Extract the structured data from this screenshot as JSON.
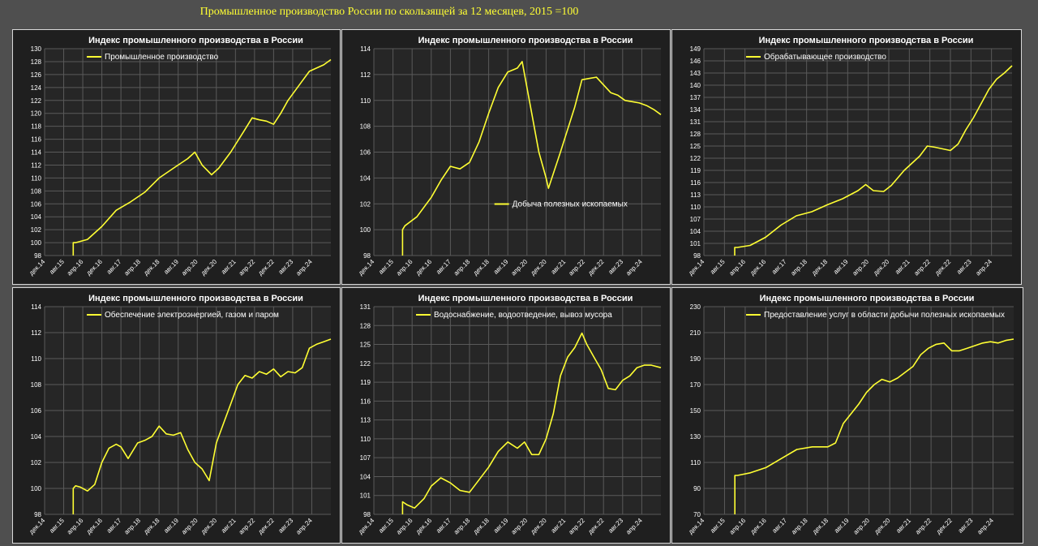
{
  "page": {
    "title": "Промышленное производство России по скользящей за 12 месяцев, 2015 =100"
  },
  "style": {
    "background": "#4f4f4f",
    "panel_background": "#1f1f1f",
    "panel_border": "#d9d9d9",
    "plot_background": "#262626",
    "grid": "#5a5a5a",
    "line": "#ffff33",
    "title_text": "#ffffff",
    "axis_text": "#ffffff",
    "legend_text": "#ffffff"
  },
  "chart_data": [
    {
      "type": "line",
      "title": "Индекс промышленного производства в России",
      "series_name": "Промышленное производство",
      "legend_position": "top-left",
      "ylim": [
        98,
        130
      ],
      "yticks": [
        98,
        100,
        102,
        104,
        106,
        108,
        110,
        112,
        114,
        116,
        118,
        120,
        122,
        124,
        126,
        128,
        130
      ],
      "xlim": [
        "2014-12",
        "2024-12"
      ],
      "xtick_labels": [
        "дек.14",
        "авг.15",
        "апр.16",
        "дек.16",
        "авг.17",
        "апр.18",
        "дек.18",
        "авг.19",
        "апр.20",
        "дек.20",
        "авг.21",
        "апр.22",
        "дек.22",
        "авг.23",
        "апр.24"
      ],
      "grid": true,
      "x": [
        "2015-12",
        "2016-01",
        "2016-06",
        "2016-12",
        "2017-06",
        "2017-12",
        "2018-06",
        "2018-12",
        "2019-06",
        "2019-12",
        "2020-03",
        "2020-06",
        "2020-10",
        "2021-01",
        "2021-06",
        "2021-12",
        "2022-03",
        "2022-06",
        "2022-09",
        "2022-12",
        "2023-03",
        "2023-06",
        "2023-09",
        "2023-12",
        "2024-03",
        "2024-06",
        "2024-09",
        "2024-12"
      ],
      "y": [
        100.0,
        100.0,
        100.5,
        102.5,
        105.0,
        106.3,
        107.8,
        110.0,
        111.5,
        113.0,
        114.0,
        112.0,
        110.5,
        111.5,
        114.0,
        117.5,
        119.3,
        119.0,
        118.8,
        118.3,
        120.0,
        122.0,
        123.5,
        125.0,
        126.5,
        127.0,
        127.5,
        128.3
      ]
    },
    {
      "type": "line",
      "title": "Индекс промышленного производства в России",
      "series_name": "Добыча полезных ископаемых",
      "legend_position": "bottom-center",
      "ylim": [
        98,
        114
      ],
      "yticks": [
        98,
        100,
        102,
        104,
        106,
        108,
        110,
        112,
        114
      ],
      "xlim": [
        "2014-12",
        "2024-12"
      ],
      "xtick_labels": [
        "дек.14",
        "авг.15",
        "апр.16",
        "дек.16",
        "авг.17",
        "апр.18",
        "дек.18",
        "авг.19",
        "апр.20",
        "дек.20",
        "авг.21",
        "апр.22",
        "дек.22",
        "авг.23",
        "апр.24"
      ],
      "grid": true,
      "x": [
        "2015-12",
        "2016-01",
        "2016-06",
        "2016-12",
        "2017-04",
        "2017-08",
        "2017-12",
        "2018-04",
        "2018-08",
        "2018-12",
        "2019-04",
        "2019-08",
        "2019-12",
        "2020-02",
        "2020-06",
        "2020-09",
        "2020-12",
        "2021-01",
        "2021-06",
        "2021-12",
        "2022-03",
        "2022-06",
        "2022-09",
        "2022-12",
        "2023-03",
        "2023-06",
        "2023-09",
        "2023-12",
        "2024-03",
        "2024-06",
        "2024-09",
        "2024-12"
      ],
      "y": [
        100.0,
        100.3,
        101.0,
        102.5,
        103.8,
        104.9,
        104.7,
        105.2,
        106.8,
        109.0,
        111.0,
        112.2,
        112.5,
        113.0,
        109.0,
        106.0,
        104.0,
        103.2,
        106.0,
        109.5,
        111.6,
        111.7,
        111.8,
        111.2,
        110.6,
        110.4,
        110.0,
        109.9,
        109.8,
        109.6,
        109.3,
        108.9
      ]
    },
    {
      "type": "line",
      "title": "Индекс промышленного производства в России",
      "series_name": "Обрабатывающее производство",
      "legend_position": "top-left",
      "ylim": [
        98,
        149
      ],
      "yticks": [
        98,
        101,
        104,
        107,
        110,
        113,
        116,
        119,
        122,
        125,
        128,
        131,
        134,
        137,
        140,
        143,
        146,
        149
      ],
      "xlim": [
        "2014-12",
        "2024-12"
      ],
      "xtick_labels": [
        "дек.14",
        "авг.15",
        "апр.16",
        "дек.16",
        "авг.17",
        "апр.18",
        "дек.18",
        "авг.19",
        "апр.20",
        "дек.20",
        "авг.21",
        "апр.22",
        "дек.22",
        "авг.23",
        "апр.24"
      ],
      "grid": true,
      "x": [
        "2015-12",
        "2016-01",
        "2016-06",
        "2016-12",
        "2017-06",
        "2017-12",
        "2018-06",
        "2018-12",
        "2019-06",
        "2019-12",
        "2020-03",
        "2020-06",
        "2020-10",
        "2021-01",
        "2021-06",
        "2021-12",
        "2022-03",
        "2022-06",
        "2022-09",
        "2022-12",
        "2023-03",
        "2023-06",
        "2023-09",
        "2023-12",
        "2024-03",
        "2024-06",
        "2024-09",
        "2024-12"
      ],
      "y": [
        100.0,
        100.0,
        100.5,
        102.5,
        105.5,
        107.8,
        108.8,
        110.5,
        112.0,
        114.0,
        115.5,
        114.0,
        113.8,
        115.3,
        119.0,
        122.5,
        125.0,
        124.7,
        124.3,
        123.9,
        125.5,
        129.0,
        132.0,
        135.5,
        139.0,
        141.5,
        143.0,
        144.8
      ]
    },
    {
      "type": "line",
      "title": "Индекс промышленного производства в России",
      "series_name": "Обеспечение электроэнергией, газом и паром",
      "legend_position": "top-left",
      "ylim": [
        98,
        114
      ],
      "yticks": [
        98,
        100,
        102,
        104,
        106,
        108,
        110,
        112,
        114
      ],
      "xlim": [
        "2014-12",
        "2024-12"
      ],
      "xtick_labels": [
        "дек.14",
        "авг.15",
        "апр.16",
        "дек.16",
        "авг.17",
        "апр.18",
        "дек.18",
        "авг.19",
        "апр.20",
        "дек.20",
        "авг.21",
        "апр.22",
        "дек.22",
        "авг.23",
        "апр.24"
      ],
      "grid": true,
      "x": [
        "2015-12",
        "2016-01",
        "2016-03",
        "2016-06",
        "2016-09",
        "2016-12",
        "2017-03",
        "2017-06",
        "2017-08",
        "2017-11",
        "2018-03",
        "2018-06",
        "2018-09",
        "2018-12",
        "2019-03",
        "2019-06",
        "2019-09",
        "2019-12",
        "2020-03",
        "2020-06",
        "2020-09",
        "2020-12",
        "2021-03",
        "2021-06",
        "2021-09",
        "2021-12",
        "2022-03",
        "2022-06",
        "2022-09",
        "2022-12",
        "2023-03",
        "2023-06",
        "2023-09",
        "2023-12",
        "2024-03",
        "2024-06",
        "2024-09",
        "2024-12"
      ],
      "y": [
        100.0,
        100.2,
        100.1,
        99.8,
        100.3,
        102.0,
        103.1,
        103.4,
        103.2,
        102.3,
        103.5,
        103.7,
        104.0,
        104.8,
        104.2,
        104.1,
        104.3,
        103.0,
        102.0,
        101.5,
        100.6,
        103.5,
        105.0,
        106.5,
        108.0,
        108.7,
        108.5,
        109.0,
        108.8,
        109.2,
        108.6,
        109.0,
        108.9,
        109.3,
        110.8,
        111.1,
        111.3,
        111.5
      ]
    },
    {
      "type": "line",
      "title": "Индекс промышленного производства в России",
      "series_name": "Водоснабжение, водоотведение, вывоз мусора",
      "legend_position": "top-left",
      "ylim": [
        98,
        131
      ],
      "yticks": [
        98,
        101,
        104,
        107,
        110,
        113,
        116,
        119,
        122,
        125,
        128,
        131
      ],
      "xlim": [
        "2014-12",
        "2024-12"
      ],
      "xtick_labels": [
        "дек.14",
        "авг.15",
        "апр.16",
        "дек.16",
        "авг.17",
        "апр.18",
        "дек.18",
        "авг.19",
        "апр.20",
        "дек.20",
        "авг.21",
        "апр.22",
        "дек.22",
        "авг.23",
        "апр.24"
      ],
      "grid": true,
      "x": [
        "2015-12",
        "2016-02",
        "2016-05",
        "2016-09",
        "2016-12",
        "2017-04",
        "2017-08",
        "2017-12",
        "2018-04",
        "2018-08",
        "2018-12",
        "2019-04",
        "2019-08",
        "2019-12",
        "2020-03",
        "2020-06",
        "2020-09",
        "2020-12",
        "2021-03",
        "2021-06",
        "2021-09",
        "2021-12",
        "2022-03",
        "2022-05",
        "2022-08",
        "2022-11",
        "2023-02",
        "2023-05",
        "2023-08",
        "2023-11",
        "2024-02",
        "2024-05",
        "2024-08",
        "2024-12"
      ],
      "y": [
        100.0,
        99.5,
        99.0,
        100.5,
        102.5,
        103.8,
        103.0,
        101.8,
        101.5,
        103.5,
        105.5,
        108.0,
        109.5,
        108.5,
        109.5,
        107.5,
        107.5,
        110.0,
        114.0,
        120.0,
        123.0,
        124.5,
        126.8,
        125.0,
        123.0,
        121.0,
        118.0,
        117.8,
        119.3,
        120.0,
        121.3,
        121.7,
        121.7,
        121.3
      ]
    },
    {
      "type": "line",
      "title": "Индекс промышленного производства в России",
      "series_name": "Предоставление услуг в области добычи полезных ископаемых",
      "legend_position": "top-left",
      "ylim": [
        70,
        230
      ],
      "yticks": [
        70,
        90,
        110,
        130,
        150,
        170,
        190,
        210,
        230
      ],
      "xlim": [
        "2014-12",
        "2024-12"
      ],
      "xtick_labels": [
        "дек.14",
        "авг.15",
        "апр.16",
        "дек.16",
        "авг.17",
        "апр.18",
        "дек.18",
        "авг.19",
        "апр.20",
        "дек.20",
        "авг.21",
        "апр.22",
        "дек.22",
        "авг.23",
        "апр.24"
      ],
      "grid": true,
      "x": [
        "2015-12",
        "2016-01",
        "2016-06",
        "2016-12",
        "2017-06",
        "2017-12",
        "2018-06",
        "2018-12",
        "2019-03",
        "2019-06",
        "2019-12",
        "2020-03",
        "2020-06",
        "2020-09",
        "2020-12",
        "2021-03",
        "2021-09",
        "2021-12",
        "2022-03",
        "2022-06",
        "2022-09",
        "2022-12",
        "2023-03",
        "2023-06",
        "2023-09",
        "2023-12",
        "2024-03",
        "2024-06",
        "2024-09",
        "2024-12"
      ],
      "y": [
        100,
        100,
        102,
        106,
        113,
        120,
        122,
        122,
        125,
        140,
        155,
        164,
        170,
        174,
        172,
        175,
        184,
        193,
        198,
        201,
        202,
        196,
        196,
        198,
        200,
        202,
        203,
        202,
        204,
        205
      ]
    }
  ]
}
